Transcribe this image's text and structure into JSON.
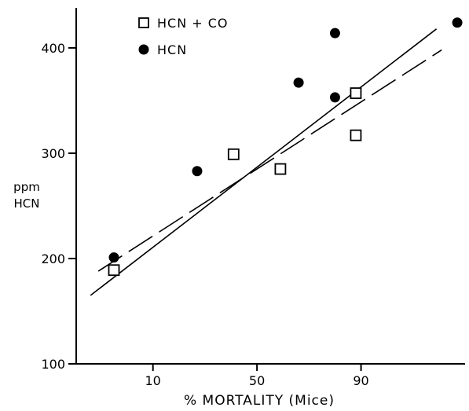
{
  "chart_data": {
    "type": "scatter",
    "xlabel": "% MORTALITY (Mice)",
    "ylabel_lines": [
      "ppm",
      "HCN"
    ],
    "x_ticks": [
      {
        "label": "10",
        "pos": 10
      },
      {
        "label": "50",
        "pos": 50
      },
      {
        "label": "90",
        "pos": 90
      }
    ],
    "y_ticks": [
      {
        "label": "100",
        "value": 100
      },
      {
        "label": "200",
        "value": 200
      },
      {
        "label": "300",
        "value": 300
      },
      {
        "label": "400",
        "value": 400
      }
    ],
    "xlim": [
      -19.5,
      130
    ],
    "ylim": [
      100,
      438
    ],
    "legend": {
      "placement": "top-left",
      "entries": [
        {
          "label": "HCN + CO",
          "marker": "open-square"
        },
        {
          "label": "HCN",
          "marker": "filled-circle"
        }
      ]
    },
    "series": [
      {
        "name": "HCN + CO",
        "marker": "open-square",
        "points": [
          [
            -5,
            189
          ],
          [
            41,
            299
          ],
          [
            59,
            285
          ],
          [
            88,
            357
          ],
          [
            88,
            317
          ]
        ],
        "fit": {
          "style": "dashed",
          "from": [
            -11,
            188
          ],
          "to": [
            121,
            398
          ]
        }
      },
      {
        "name": "HCN",
        "marker": "filled-circle",
        "points": [
          [
            -5,
            201
          ],
          [
            27,
            283
          ],
          [
            66,
            367
          ],
          [
            80,
            353
          ],
          [
            80,
            414
          ],
          [
            127,
            424
          ]
        ],
        "fit": {
          "style": "solid",
          "from": [
            -14,
            165
          ],
          "to": [
            119,
            418
          ]
        }
      }
    ]
  }
}
